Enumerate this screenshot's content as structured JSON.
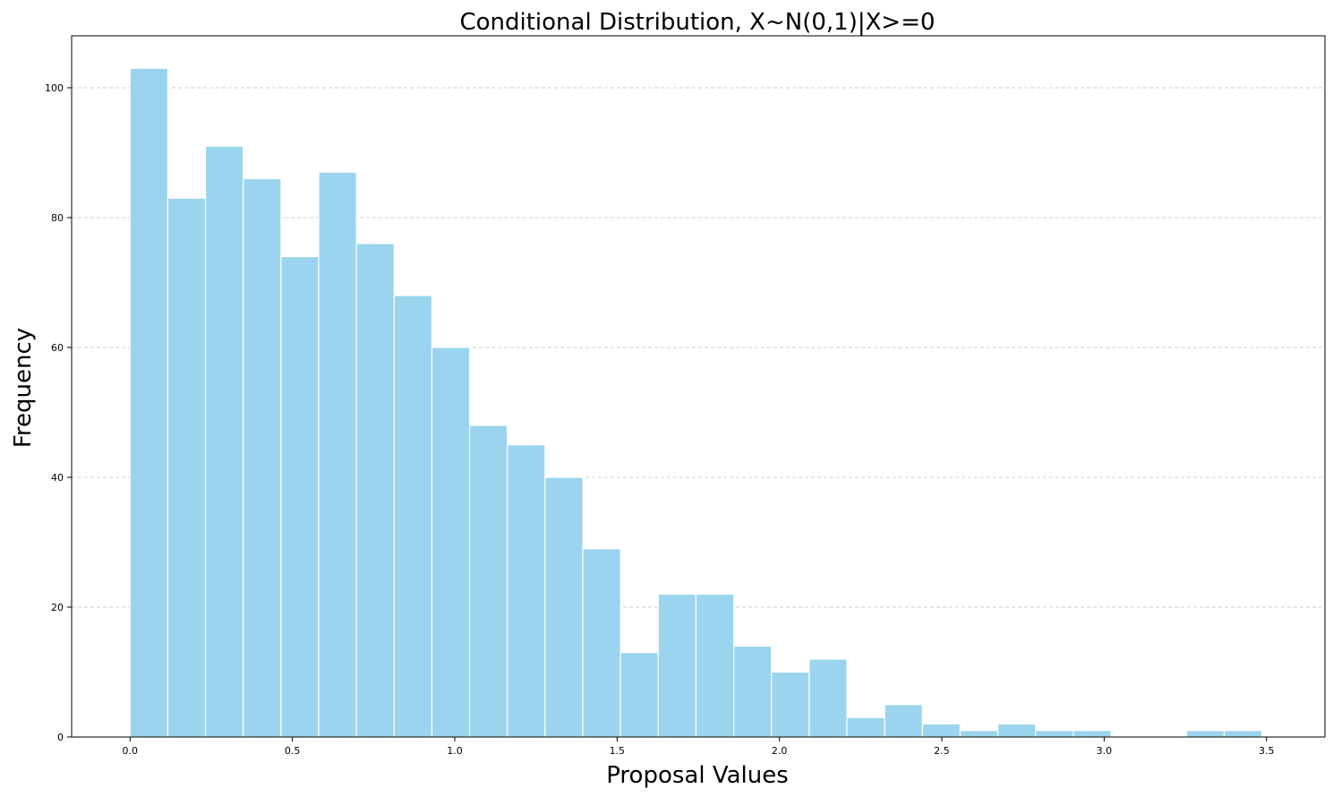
{
  "chart_data": {
    "type": "bar",
    "title": "Conditional Distribution, X~N(0,1)|X>=0",
    "xlabel": "Proposal Values",
    "ylabel": "Frequency",
    "xlim": [
      -0.18,
      3.68
    ],
    "ylim": [
      0,
      108
    ],
    "x_ticks": [
      0.0,
      0.5,
      1.0,
      1.5,
      2.0,
      2.5,
      3.0,
      3.5
    ],
    "x_tick_labels": [
      "0.0",
      "0.5",
      "1.0",
      "1.5",
      "2.0",
      "2.5",
      "3.0",
      "3.5"
    ],
    "y_ticks": [
      0,
      20,
      40,
      60,
      80,
      100
    ],
    "y_tick_labels": [
      "0",
      "20",
      "40",
      "60",
      "80",
      "100"
    ],
    "grid": "y-dashed",
    "bin_start": 0.0,
    "bin_width": 0.1162,
    "values": [
      103,
      83,
      91,
      86,
      74,
      87,
      76,
      68,
      60,
      48,
      45,
      40,
      29,
      13,
      22,
      22,
      14,
      10,
      12,
      3,
      5,
      2,
      1,
      2,
      1,
      1,
      0,
      0,
      1,
      1
    ],
    "bar_color": "#9ad4ee",
    "edge_color": "#ffffff"
  }
}
